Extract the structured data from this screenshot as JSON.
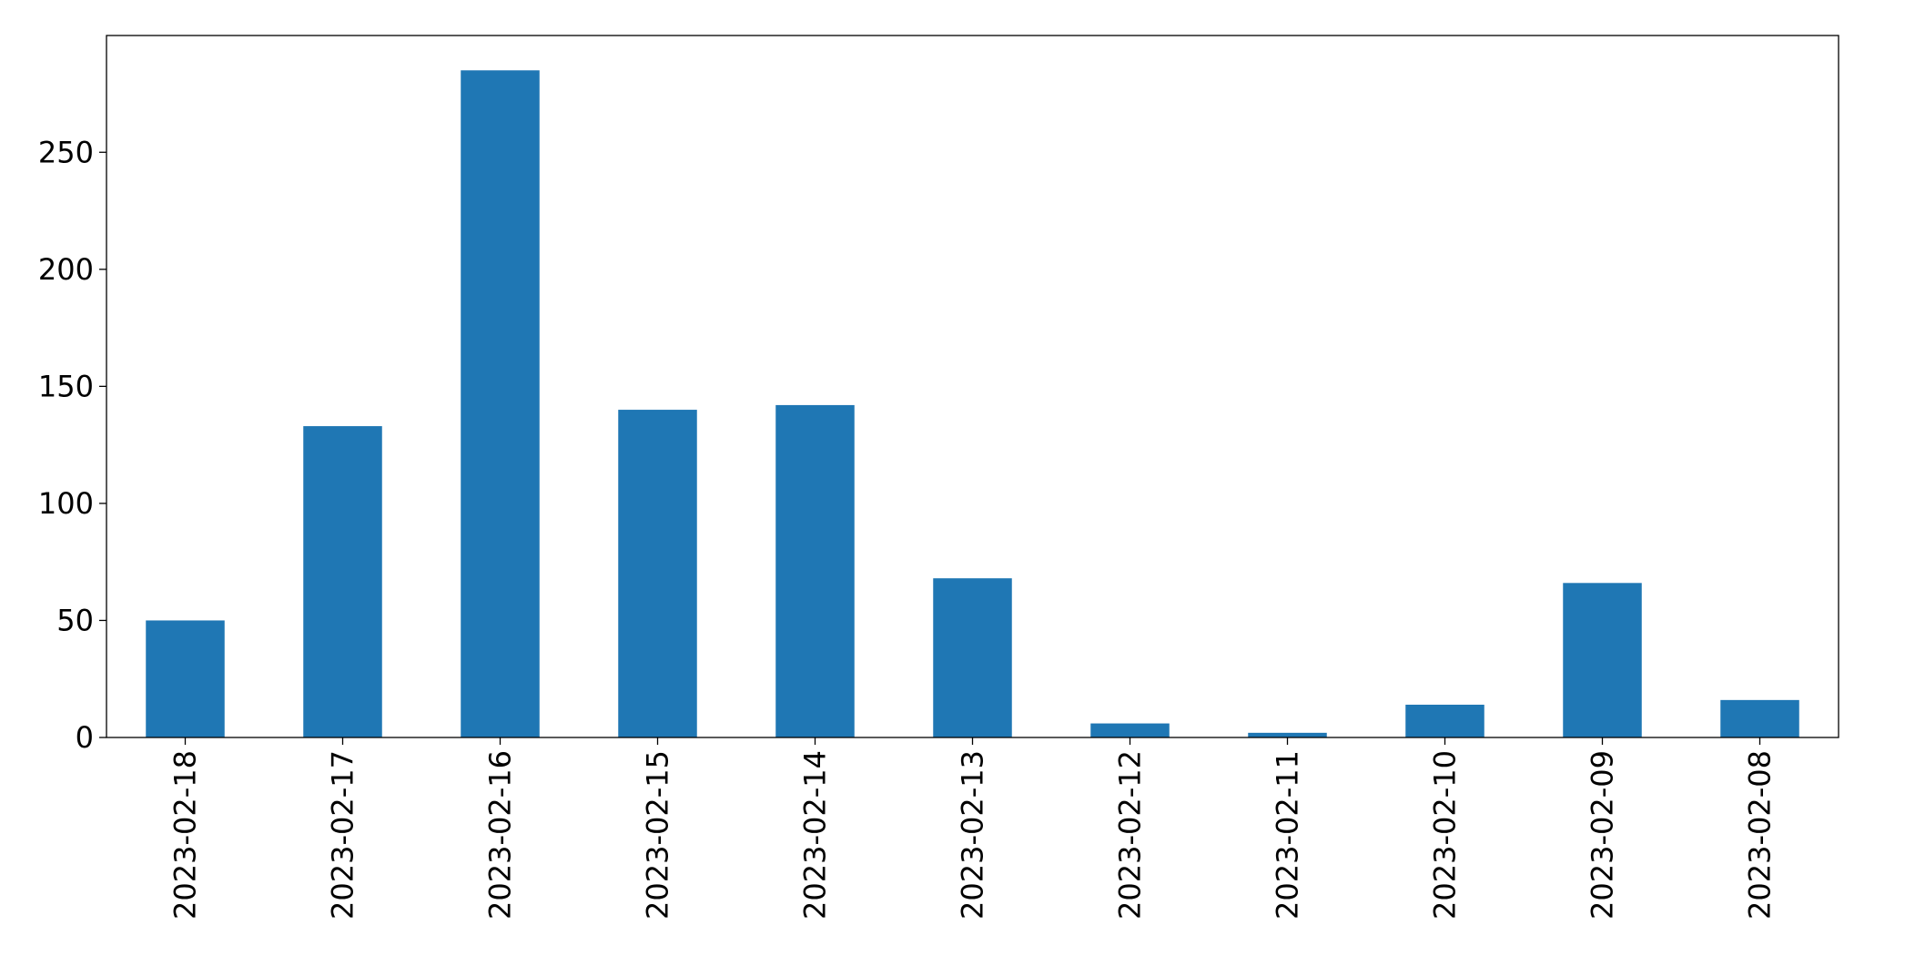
{
  "chart_data": {
    "type": "bar",
    "categories": [
      "2023-02-18",
      "2023-02-17",
      "2023-02-16",
      "2023-02-15",
      "2023-02-14",
      "2023-02-13",
      "2023-02-12",
      "2023-02-11",
      "2023-02-10",
      "2023-02-09",
      "2023-02-08"
    ],
    "values": [
      50,
      133,
      285,
      140,
      142,
      68,
      6,
      2,
      14,
      66,
      16
    ],
    "title": "",
    "xlabel": "",
    "ylabel": "",
    "ylim": [
      0,
      300
    ],
    "yticks": [
      0,
      50,
      100,
      150,
      200,
      250
    ],
    "grid": false,
    "legend": false,
    "bar_color": "#1f77b4"
  }
}
